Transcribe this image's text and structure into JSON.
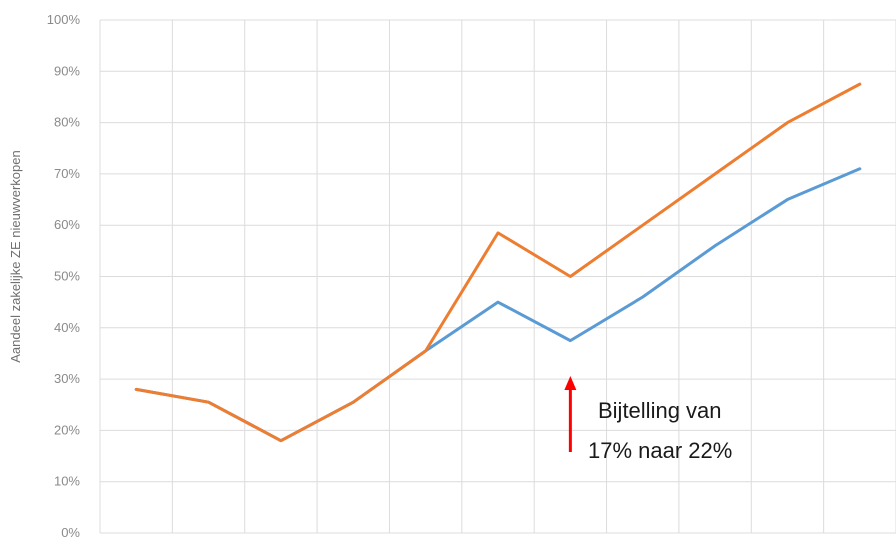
{
  "chart_data": {
    "type": "line",
    "title": "",
    "xlabel": "",
    "ylabel": "Aandeel zakelijke ZE nieuwverkopen",
    "ylim": [
      0,
      100
    ],
    "y_ticks": [
      "0%",
      "10%",
      "20%",
      "30%",
      "40%",
      "50%",
      "60%",
      "70%",
      "80%",
      "90%",
      "100%"
    ],
    "grid": true,
    "legend": "none",
    "x_categories": 11,
    "series": [
      {
        "color": "#5b9bd5",
        "values": [
          28,
          25.5,
          18,
          25.5,
          35.5,
          45,
          37.5,
          46,
          56,
          65,
          71
        ]
      },
      {
        "color": "#ed7d31",
        "values": [
          28,
          25.5,
          18,
          25.5,
          35.5,
          58.5,
          50,
          60,
          70,
          80,
          87.5
        ]
      }
    ],
    "annotation": {
      "line1": "Bijtelling van",
      "line2": "17% naar 22%",
      "arrow_color": "#ff0000"
    }
  }
}
